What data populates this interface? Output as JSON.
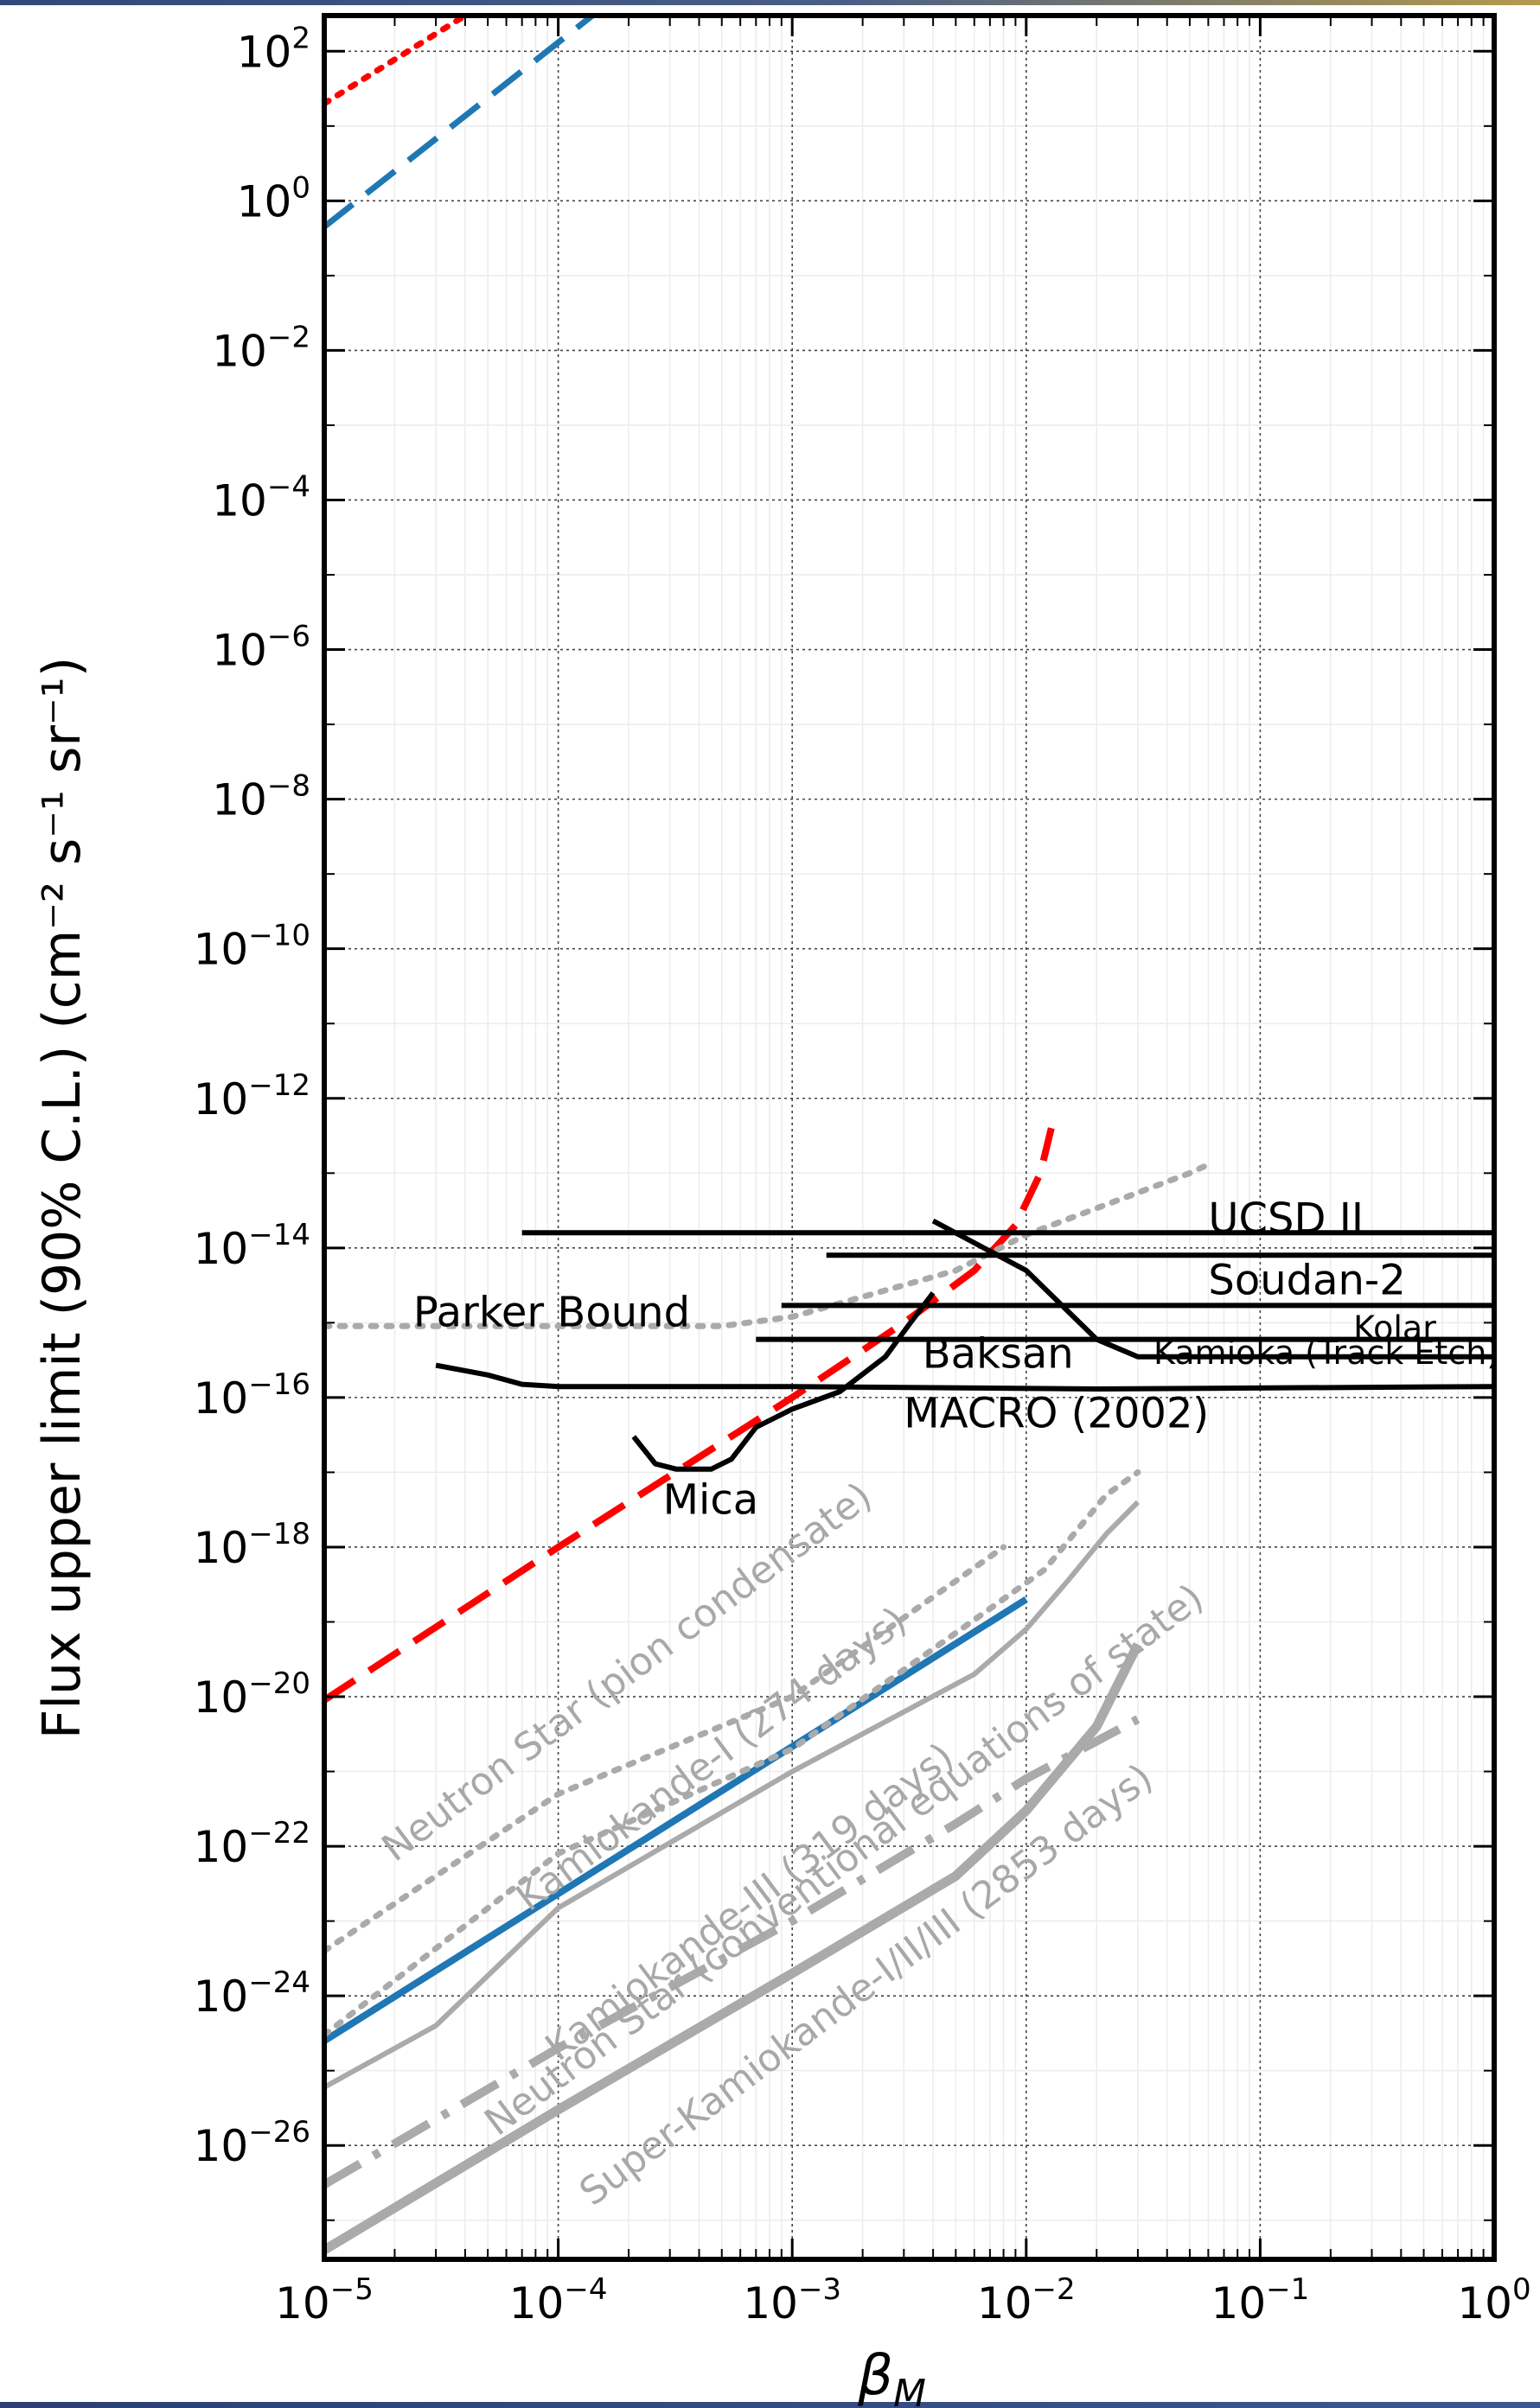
{
  "chart_data": {
    "type": "line",
    "title": "",
    "xlabel": "β",
    "xlabel_sub": "M",
    "ylabel": "Flux upper limit (90% C.L.) (cm⁻² s⁻¹ sr⁻¹)",
    "xscale": "log",
    "yscale": "log",
    "xlim": [
      1e-05,
      1
    ],
    "ylim": [
      3e-28,
      300.0
    ],
    "grid": true,
    "x_ticks": [
      {
        "exp": -5,
        "label": "10",
        "sup": "−5"
      },
      {
        "exp": -4,
        "label": "10",
        "sup": "−4"
      },
      {
        "exp": -3,
        "label": "10",
        "sup": "−3"
      },
      {
        "exp": -2,
        "label": "10",
        "sup": "−2"
      },
      {
        "exp": -1,
        "label": "10",
        "sup": "−1"
      },
      {
        "exp": 0,
        "label": "10",
        "sup": "0"
      }
    ],
    "y_ticks": [
      {
        "exp": 2,
        "label": "10",
        "sup": "2"
      },
      {
        "exp": 0,
        "label": "10",
        "sup": "0"
      },
      {
        "exp": -2,
        "label": "10",
        "sup": "−2"
      },
      {
        "exp": -4,
        "label": "10",
        "sup": "−4"
      },
      {
        "exp": -6,
        "label": "10",
        "sup": "−6"
      },
      {
        "exp": -8,
        "label": "10",
        "sup": "−8"
      },
      {
        "exp": -10,
        "label": "10",
        "sup": "−10"
      },
      {
        "exp": -12,
        "label": "10",
        "sup": "−12"
      },
      {
        "exp": -14,
        "label": "10",
        "sup": "−14"
      },
      {
        "exp": -16,
        "label": "10",
        "sup": "−16"
      },
      {
        "exp": -18,
        "label": "10",
        "sup": "−18"
      },
      {
        "exp": -20,
        "label": "10",
        "sup": "−20"
      },
      {
        "exp": -22,
        "label": "10",
        "sup": "−22"
      },
      {
        "exp": -24,
        "label": "10",
        "sup": "−24"
      },
      {
        "exp": -26,
        "label": "10",
        "sup": "−26"
      }
    ],
    "series": [
      {
        "color": "#ff0000",
        "style": "dotted",
        "width": 7,
        "points": [
          [
            1e-05,
            20
          ],
          [
            4e-05,
            300.0
          ]
        ]
      },
      {
        "color": "#1f77b4",
        "style": "dashed",
        "width": 7,
        "points": [
          [
            1e-05,
            0.45
          ],
          [
            0.00014,
            300.0
          ]
        ]
      },
      {
        "color": "#ff0000",
        "style": "dashed",
        "width": 8,
        "points": [
          [
            1e-05,
            9e-21
          ],
          [
            0.0001,
            1e-18
          ],
          [
            0.001,
            1e-16
          ],
          [
            0.003,
            1e-15
          ],
          [
            0.006,
            5e-15
          ],
          [
            0.009,
            2e-14
          ],
          [
            0.0115,
            1e-13
          ],
          [
            0.0128,
            4e-13
          ]
        ]
      },
      {
        "color": "#1f77b4",
        "style": "solid",
        "width": 8,
        "points": [
          [
            1e-05,
            2.5e-25
          ],
          [
            0.01,
            2e-19
          ]
        ]
      },
      {
        "color": "#aaaaaa",
        "style": "dotted",
        "width": 7,
        "points": [
          [
            1e-05,
            9e-16
          ],
          [
            0.0005,
            9e-16
          ],
          [
            0.001,
            1.2e-15
          ],
          [
            0.005,
            5e-15
          ],
          [
            0.01,
            1.5e-14
          ],
          [
            0.05,
            1e-13
          ],
          [
            0.06,
            1.3e-13
          ]
        ]
      },
      {
        "color": "#000000",
        "style": "solid",
        "width": 6,
        "points": [
          [
            7e-05,
            1.6e-14
          ],
          [
            1,
            1.6e-14
          ]
        ]
      },
      {
        "color": "#000000",
        "style": "solid",
        "width": 6,
        "points": [
          [
            0.0014,
            8e-15
          ],
          [
            1,
            8e-15
          ]
        ]
      },
      {
        "color": "#000000",
        "style": "solid",
        "width": 6,
        "points": [
          [
            0.0009,
            1.7e-15
          ],
          [
            1,
            1.7e-15
          ]
        ]
      },
      {
        "color": "#000000",
        "style": "solid",
        "width": 6,
        "points": [
          [
            0.0007,
            6e-16
          ],
          [
            1,
            6e-16
          ]
        ]
      },
      {
        "color": "#000000",
        "style": "solid",
        "width": 6,
        "points": [
          [
            0.004,
            2.3e-14
          ],
          [
            0.01,
            5e-15
          ],
          [
            0.02,
            6e-16
          ],
          [
            0.03,
            3.5e-16
          ],
          [
            1,
            3.5e-16
          ]
        ]
      },
      {
        "color": "#000000",
        "style": "solid",
        "width": 6,
        "points": [
          [
            3e-05,
            2.7e-16
          ],
          [
            5e-05,
            2e-16
          ],
          [
            7e-05,
            1.5e-16
          ],
          [
            0.0001,
            1.4e-16
          ],
          [
            0.001,
            1.4e-16
          ],
          [
            0.02,
            1.3e-16
          ],
          [
            1,
            1.4e-16
          ]
        ]
      },
      {
        "color": "#000000",
        "style": "solid",
        "width": 6,
        "points": [
          [
            0.00021,
            3e-17
          ],
          [
            0.00026,
            1.3e-17
          ],
          [
            0.00032,
            1.1e-17
          ],
          [
            0.00045,
            1.1e-17
          ],
          [
            0.00055,
            1.5e-17
          ],
          [
            0.0007,
            4e-17
          ],
          [
            0.001,
            7e-17
          ],
          [
            0.0016,
            1.2e-16
          ],
          [
            0.0025,
            3.5e-16
          ],
          [
            0.0032,
            1e-15
          ],
          [
            0.004,
            2.5e-15
          ]
        ]
      },
      {
        "color": "#aaaaaa",
        "style": "dotted",
        "width": 7,
        "points": [
          [
            1e-05,
            4e-24
          ],
          [
            0.0001,
            5e-22
          ],
          [
            0.001,
            1e-20
          ],
          [
            0.008,
            1e-18
          ]
        ]
      },
      {
        "color": "#aaaaaa",
        "style": "dotted",
        "width": 7,
        "points": [
          [
            1e-05,
            3e-25
          ],
          [
            0.0001,
            8e-23
          ],
          [
            0.001,
            2e-21
          ],
          [
            0.007,
            1.5e-19
          ],
          [
            0.012,
            5e-19
          ],
          [
            0.016,
            1.5e-18
          ],
          [
            0.022,
            5e-18
          ],
          [
            0.03,
            1e-17
          ]
        ]
      },
      {
        "color": "#aaaaaa",
        "style": "solid",
        "width": 6,
        "points": [
          [
            1e-05,
            6e-26
          ],
          [
            3e-05,
            4e-25
          ],
          [
            0.0001,
            1.5e-23
          ],
          [
            0.001,
            1e-21
          ],
          [
            0.006,
            2e-20
          ],
          [
            0.01,
            8e-20
          ],
          [
            0.015,
            3.5e-19
          ],
          [
            0.022,
            1.5e-18
          ],
          [
            0.03,
            4e-18
          ]
        ]
      },
      {
        "color": "#aaaaaa",
        "style": "dashdot",
        "width": 10,
        "points": [
          [
            1e-05,
            3e-27
          ],
          [
            0.0001,
            2e-25
          ],
          [
            0.001,
            1e-23
          ],
          [
            0.005,
            2e-22
          ],
          [
            0.01,
            8e-22
          ],
          [
            0.03,
            5e-21
          ]
        ]
      },
      {
        "color": "#aaaaaa",
        "style": "solid",
        "width": 11,
        "points": [
          [
            1e-05,
            4e-28
          ],
          [
            0.0001,
            3e-26
          ],
          [
            0.001,
            2e-24
          ],
          [
            0.005,
            4e-23
          ],
          [
            0.01,
            3e-22
          ],
          [
            0.02,
            4e-21
          ],
          [
            0.03,
            5e-20
          ]
        ]
      }
    ],
    "annotations": [
      {
        "text": "UCSD II",
        "x": 0.06,
        "y": 1.6e-14,
        "color": "#000000",
        "size": 48,
        "rotation": 0
      },
      {
        "text": "Soudan-2",
        "x": 0.06,
        "y": 2.4e-15,
        "color": "#000000",
        "size": 48,
        "rotation": 0
      },
      {
        "text": "Kolar",
        "x": 0.25,
        "y": 6e-16,
        "color": "#000000",
        "size": 38,
        "rotation": 0
      },
      {
        "text": "Kamioka (Track Etch)",
        "x": 0.035,
        "y": 2.8e-16,
        "color": "#000000",
        "size": 38,
        "rotation": 0
      },
      {
        "text": "Parker Bound",
        "x": 2.4e-05,
        "y": 9e-16,
        "color": "#000000",
        "size": 48,
        "rotation": 0
      },
      {
        "text": "Baksan",
        "x": 0.0036,
        "y": 2.5e-16,
        "color": "#000000",
        "size": 48,
        "rotation": 0
      },
      {
        "text": "MACRO (2002)",
        "x": 0.003,
        "y": 4e-17,
        "color": "#000000",
        "size": 48,
        "rotation": 0
      },
      {
        "text": "Mica",
        "x": 0.00028,
        "y": 2.8e-18,
        "color": "#000000",
        "size": 48,
        "rotation": 0
      },
      {
        "text": "Neutron Star (pion condensate)",
        "x": 2e-05,
        "y": 6e-23,
        "color": "#a8a8a8",
        "size": 44,
        "rotation": -37
      },
      {
        "text": "Kamiokande-I (274 days)",
        "x": 7.5e-05,
        "y": 1.3e-23,
        "color": "#a8a8a8",
        "size": 44,
        "rotation": -37
      },
      {
        "text": "Kamiokande-III (319 days)",
        "x": 0.0001,
        "y": 1.3e-25,
        "color": "#a8a8a8",
        "size": 44,
        "rotation": -37
      },
      {
        "text": "Neutron Star (conventional equations of state)",
        "x": 5.5e-05,
        "y": 1.3e-26,
        "color": "#a8a8a8",
        "size": 44,
        "rotation": -37
      },
      {
        "text": "Super-Kamiokande-I/II/III (2853 days)",
        "x": 0.00014,
        "y": 1.5e-27,
        "color": "#a8a8a8",
        "size": 44,
        "rotation": -37
      }
    ]
  }
}
